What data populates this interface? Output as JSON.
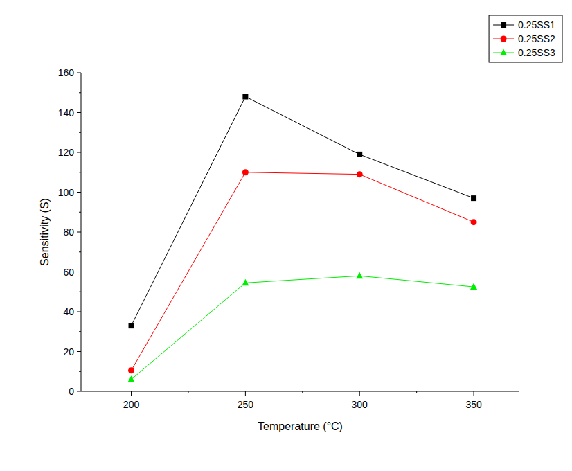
{
  "chart_data": {
    "type": "line",
    "x_label": "Temperature (°C)",
    "y_label": "Sensitivity (S)",
    "x": [
      200,
      250,
      300,
      350
    ],
    "xlim": [
      178,
      370
    ],
    "xticks": [
      200,
      250,
      300,
      350
    ],
    "ylim": [
      0,
      160
    ],
    "yticks": [
      0,
      20,
      40,
      60,
      80,
      100,
      120,
      140,
      160
    ],
    "grid": false,
    "legend": "upper right",
    "series": [
      {
        "name": "0.25SS1",
        "color": "#000000",
        "marker": "square",
        "values": [
          33,
          148,
          119,
          97
        ]
      },
      {
        "name": "0.25SS2",
        "color": "#ff0000",
        "marker": "circle",
        "values": [
          10.5,
          110,
          109,
          85
        ]
      },
      {
        "name": "0.25SS3",
        "color": "#00ee00",
        "marker": "triangle",
        "values": [
          6,
          54.5,
          58,
          52.5
        ]
      }
    ]
  }
}
